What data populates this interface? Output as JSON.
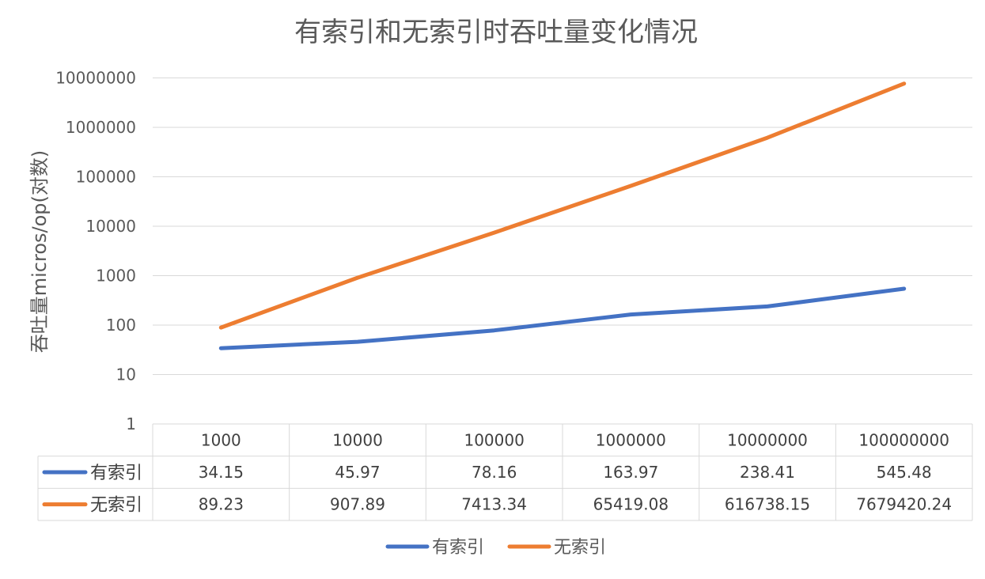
{
  "chart_data": {
    "type": "line",
    "title": "有索引和无索引时吞吐量变化情况",
    "xlabel": "",
    "ylabel": "吞吐量micros/op(对数)",
    "y_scale": "log",
    "ylim": [
      1,
      10000000
    ],
    "y_ticks": [
      "1",
      "10",
      "100",
      "1000",
      "10000",
      "100000",
      "1000000",
      "10000000"
    ],
    "categories": [
      "1000",
      "10000",
      "100000",
      "1000000",
      "10000000",
      "100000000"
    ],
    "grid": true,
    "legend_position": "bottom",
    "data_table": true,
    "series": [
      {
        "name": "有索引",
        "color": "#4472C4",
        "values": [
          34.15,
          45.97,
          78.16,
          163.97,
          238.41,
          545.48
        ],
        "labels": [
          "34.15",
          "45.97",
          "78.16",
          "163.97",
          "238.41",
          "545.48"
        ]
      },
      {
        "name": "无索引",
        "color": "#ED7D31",
        "values": [
          89.23,
          907.89,
          7413.34,
          65419.08,
          616738.15,
          7679420.24
        ],
        "labels": [
          "89.23",
          "907.89",
          "7413.34",
          "65419.08",
          "616738.15",
          "7679420.24"
        ]
      }
    ]
  }
}
